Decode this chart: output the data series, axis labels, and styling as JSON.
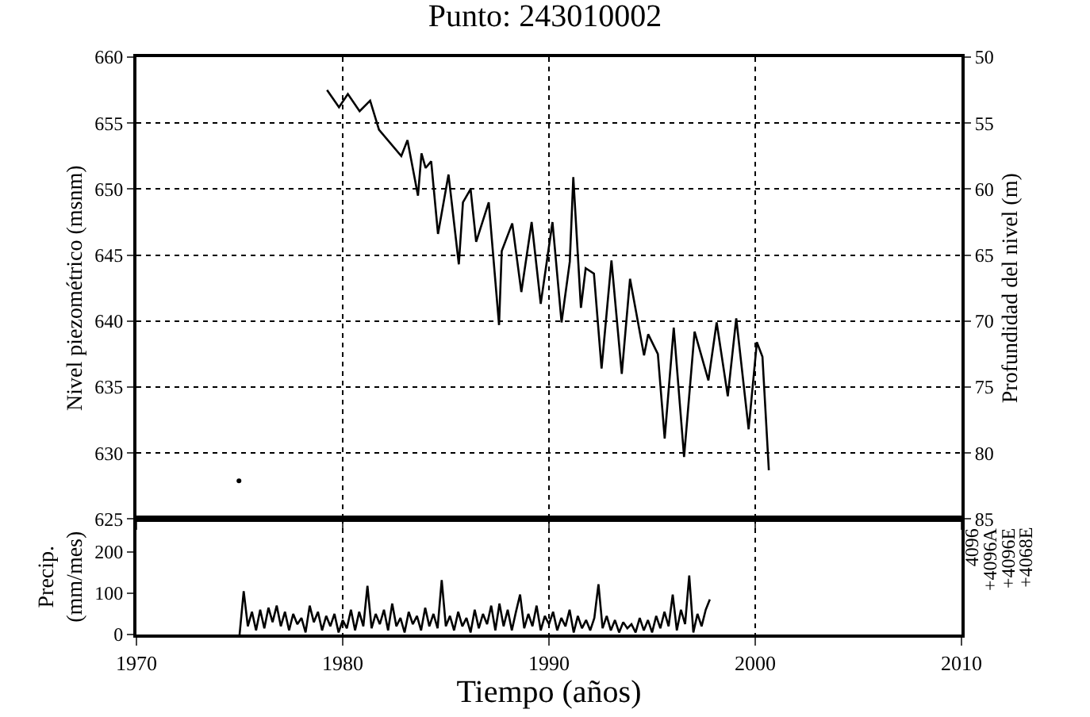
{
  "chart_data": [
    {
      "type": "line",
      "title": "Punto: 243010002",
      "ylabel": "Nivel piezométrico (msnm)",
      "y2label": "Profundidad del nivel (m)",
      "xlim": [
        1970,
        2010
      ],
      "xticks": [
        1970,
        1980,
        1990,
        2000,
        2010
      ],
      "ylim": [
        625,
        660
      ],
      "yticks": [
        625,
        630,
        635,
        640,
        645,
        650,
        655,
        660
      ],
      "y2lim": [
        85,
        50
      ],
      "y2ticks": [
        50,
        55,
        60,
        65,
        70,
        75,
        80,
        85
      ],
      "tick_labels": "y",
      "grid": true,
      "line_style": "solid",
      "marker": "none",
      "series": [
        {
          "color": "#000000",
          "x": [
            1979.24,
            1979.82,
            1980.25,
            1980.82,
            1981.33,
            1981.76,
            1982.84,
            1983.14,
            1983.65,
            1983.82,
            1984.02,
            1984.29,
            1984.62,
            1985.13,
            1985.63,
            1985.83,
            1986.2,
            1986.47,
            1987.08,
            1987.58,
            1987.71,
            1988.22,
            1988.66,
            1989.16,
            1989.6,
            1990.17,
            1990.61,
            1991.01,
            1991.18,
            1991.55,
            1991.78,
            1992.18,
            1992.55,
            1993.03,
            1993.53,
            1993.93,
            1994.61,
            1994.81,
            1995.28,
            1995.61,
            1996.05,
            1996.55,
            1997.06,
            1997.73,
            1998.13,
            1998.67,
            1999.08,
            1999.68,
            2000.08,
            2000.35,
            2000.66
          ],
          "values": [
            657.5,
            656.2,
            657.2,
            655.9,
            656.7,
            654.5,
            652.5,
            653.7,
            649.5,
            652.7,
            651.6,
            652.1,
            646.6,
            651.1,
            644.3,
            649.0,
            650.0,
            646.0,
            649.0,
            639.7,
            645.3,
            647.4,
            642.2,
            647.5,
            641.3,
            647.5,
            639.9,
            644.5,
            650.9,
            641.0,
            644.0,
            643.6,
            636.4,
            644.6,
            636.0,
            643.2,
            637.4,
            639.0,
            637.5,
            631.1,
            639.5,
            629.7,
            639.2,
            635.5,
            639.9,
            634.3,
            640.2,
            631.8,
            638.4,
            637.3,
            628.7
          ]
        },
        {
          "type": "scatter",
          "color": "#000000",
          "x": [
            1974.97
          ],
          "values": [
            627.9
          ]
        }
      ]
    },
    {
      "type": "line",
      "xlabel": "Tiempo (años)",
      "ylabel": "Precip.\n(mm/mes)",
      "xlim": [
        1970,
        2010
      ],
      "xticks": [
        1970,
        1980,
        1990,
        2000,
        2010
      ],
      "ylim": [
        0,
        280
      ],
      "yticks": [
        0,
        100,
        200
      ],
      "grid": "x",
      "line_style": "solid",
      "marker": "none",
      "annotations": [
        "4096",
        "+4096A",
        "+4096E",
        "+4068E"
      ],
      "series": [
        {
          "color": "#000000",
          "x": [
            1975.0,
            1975.2,
            1975.4,
            1975.6,
            1975.8,
            1976.0,
            1976.2,
            1976.4,
            1976.6,
            1976.8,
            1977.0,
            1977.2,
            1977.4,
            1977.6,
            1977.8,
            1978.0,
            1978.2,
            1978.4,
            1978.6,
            1978.8,
            1979.0,
            1979.2,
            1979.4,
            1979.6,
            1979.8,
            1980.0,
            1980.2,
            1980.4,
            1980.6,
            1980.8,
            1981.0,
            1981.2,
            1981.4,
            1981.6,
            1981.8,
            1982.0,
            1982.2,
            1982.4,
            1982.6,
            1982.8,
            1983.0,
            1983.2,
            1983.4,
            1983.6,
            1983.8,
            1984.0,
            1984.2,
            1984.4,
            1984.6,
            1984.8,
            1985.0,
            1985.2,
            1985.4,
            1985.6,
            1985.8,
            1986.0,
            1986.2,
            1986.4,
            1986.6,
            1986.8,
            1987.0,
            1987.2,
            1987.4,
            1987.6,
            1987.8,
            1988.0,
            1988.2,
            1988.4,
            1988.6,
            1988.8,
            1989.0,
            1989.2,
            1989.4,
            1989.6,
            1989.8,
            1990.0,
            1990.2,
            1990.4,
            1990.6,
            1990.8,
            1991.0,
            1991.2,
            1991.4,
            1991.6,
            1991.8,
            1992.0,
            1992.2,
            1992.4,
            1992.6,
            1992.8,
            1993.0,
            1993.2,
            1993.4,
            1993.6,
            1993.8,
            1994.0,
            1994.2,
            1994.4,
            1994.6,
            1994.8,
            1995.0,
            1995.2,
            1995.4,
            1995.6,
            1995.8,
            1996.0,
            1996.2,
            1996.4,
            1996.6,
            1996.8,
            1997.0,
            1997.2,
            1997.4,
            1997.6,
            1997.8
          ],
          "values": [
            0,
            105,
            20,
            55,
            10,
            60,
            15,
            65,
            30,
            70,
            20,
            55,
            10,
            50,
            25,
            40,
            5,
            70,
            30,
            55,
            10,
            45,
            20,
            50,
            5,
            35,
            15,
            60,
            10,
            55,
            20,
            118,
            15,
            50,
            25,
            60,
            10,
            75,
            20,
            40,
            5,
            55,
            25,
            45,
            10,
            65,
            20,
            50,
            15,
            132,
            20,
            45,
            10,
            55,
            20,
            40,
            5,
            60,
            15,
            50,
            25,
            70,
            10,
            75,
            20,
            60,
            10,
            55,
            97,
            15,
            50,
            20,
            70,
            10,
            45,
            25,
            55,
            10,
            40,
            20,
            60,
            5,
            45,
            15,
            35,
            10,
            40,
            122,
            15,
            45,
            10,
            35,
            5,
            30,
            15,
            25,
            5,
            40,
            10,
            35,
            5,
            45,
            15,
            55,
            20,
            97,
            10,
            60,
            25,
            143,
            5,
            50,
            20,
            60,
            85
          ]
        }
      ]
    }
  ]
}
